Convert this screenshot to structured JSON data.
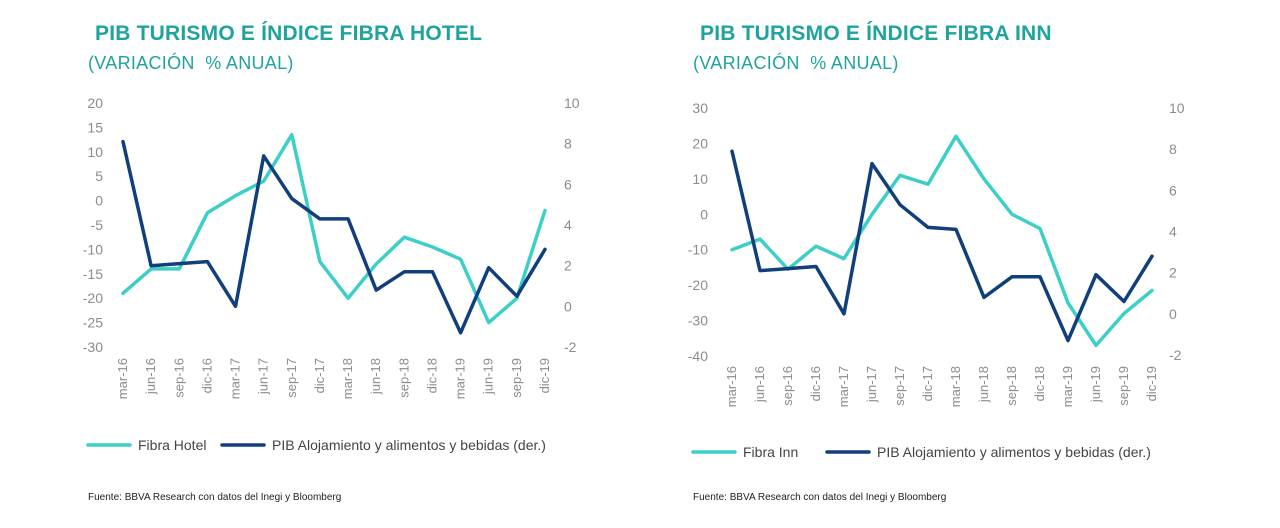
{
  "colors": {
    "accent": "#1fa39e",
    "fibra_line": "#3ccfc8",
    "pib_line": "#113f7c",
    "axis_text": "#8c8c8c"
  },
  "chart_data": [
    {
      "type": "line",
      "title": "PIB TURISMO E ÍNDICE FIBRA HOTEL",
      "subtitle": "(VARIACIÓN  % ANUAL)",
      "source": "Fuente:  BBVA  Research con datos del Inegi y Bloomberg",
      "categories": [
        "mar-16",
        "jun-16",
        "sep-16",
        "dic-16",
        "mar-17",
        "jun-17",
        "sep-17",
        "dic-17",
        "mar-18",
        "jun-18",
        "sep-18",
        "dic-18",
        "mar-19",
        "jun-19",
        "sep-19",
        "dic-19"
      ],
      "y_left": {
        "ylim": [
          -30,
          20
        ],
        "ticks": [
          "20",
          "15",
          "10",
          "5",
          "0",
          "-5",
          "-10",
          "-15",
          "-20",
          "-25",
          "-30"
        ]
      },
      "y_right": {
        "ylim": [
          -2,
          10
        ],
        "ticks": [
          "10",
          "8",
          "6",
          "4",
          "2",
          "0",
          "-2"
        ]
      },
      "grid": false,
      "legend_position": "bottom",
      "series": [
        {
          "name": "Fibra Hotel",
          "axis": "left",
          "color": "#3ccfc8",
          "values": [
            -19,
            -14,
            -14,
            -2.5,
            1,
            4,
            13.5,
            -12.5,
            -20,
            -13,
            -7.5,
            -9.5,
            -12,
            -25,
            -20,
            -2
          ]
        },
        {
          "name": "PIB Alojamiento y alimentos y bebidas (der.)",
          "axis": "right",
          "color": "#113f7c",
          "values": [
            8.1,
            2.0,
            2.1,
            2.2,
            0.0,
            7.4,
            5.3,
            4.3,
            4.3,
            0.8,
            1.7,
            1.7,
            -1.3,
            1.9,
            0.5,
            2.8
          ]
        }
      ]
    },
    {
      "type": "line",
      "title": "PIB TURISMO E ÍNDICE FIBRA INN",
      "subtitle": "(VARIACIÓN  % ANUAL)",
      "source": "Fuente:  BBVA  Research con datos del Inegi y Bloomberg",
      "categories": [
        "mar-16",
        "jun-16",
        "sep-16",
        "dic-16",
        "mar-17",
        "jun-17",
        "sep-17",
        "dic-17",
        "mar-18",
        "jun-18",
        "sep-18",
        "dic-18",
        "mar-19",
        "jun-19",
        "sep-19",
        "dic-19"
      ],
      "y_left": {
        "ylim": [
          -40,
          30
        ],
        "ticks": [
          "30",
          "20",
          "10",
          "0",
          "-10",
          "-20",
          "-30",
          "-40"
        ]
      },
      "y_right": {
        "ylim": [
          -2,
          10
        ],
        "ticks": [
          "10",
          "8",
          "6",
          "4",
          "2",
          "0",
          "-2"
        ]
      },
      "grid": false,
      "legend_position": "bottom",
      "series": [
        {
          "name": "Fibra Inn",
          "axis": "left",
          "color": "#3ccfc8",
          "values": [
            -10,
            -7,
            -15.5,
            -9,
            -12.5,
            0,
            11,
            8.5,
            22,
            10,
            0,
            -4,
            -25,
            -37,
            -28,
            -21.5
          ]
        },
        {
          "name": "PIB Alojamiento y alimentos y bebidas (der.)",
          "axis": "right",
          "color": "#113f7c",
          "values": [
            7.9,
            2.1,
            2.2,
            2.3,
            0.0,
            7.3,
            5.3,
            4.2,
            4.1,
            0.8,
            1.8,
            1.8,
            -1.3,
            1.9,
            0.6,
            2.8
          ]
        }
      ]
    }
  ]
}
